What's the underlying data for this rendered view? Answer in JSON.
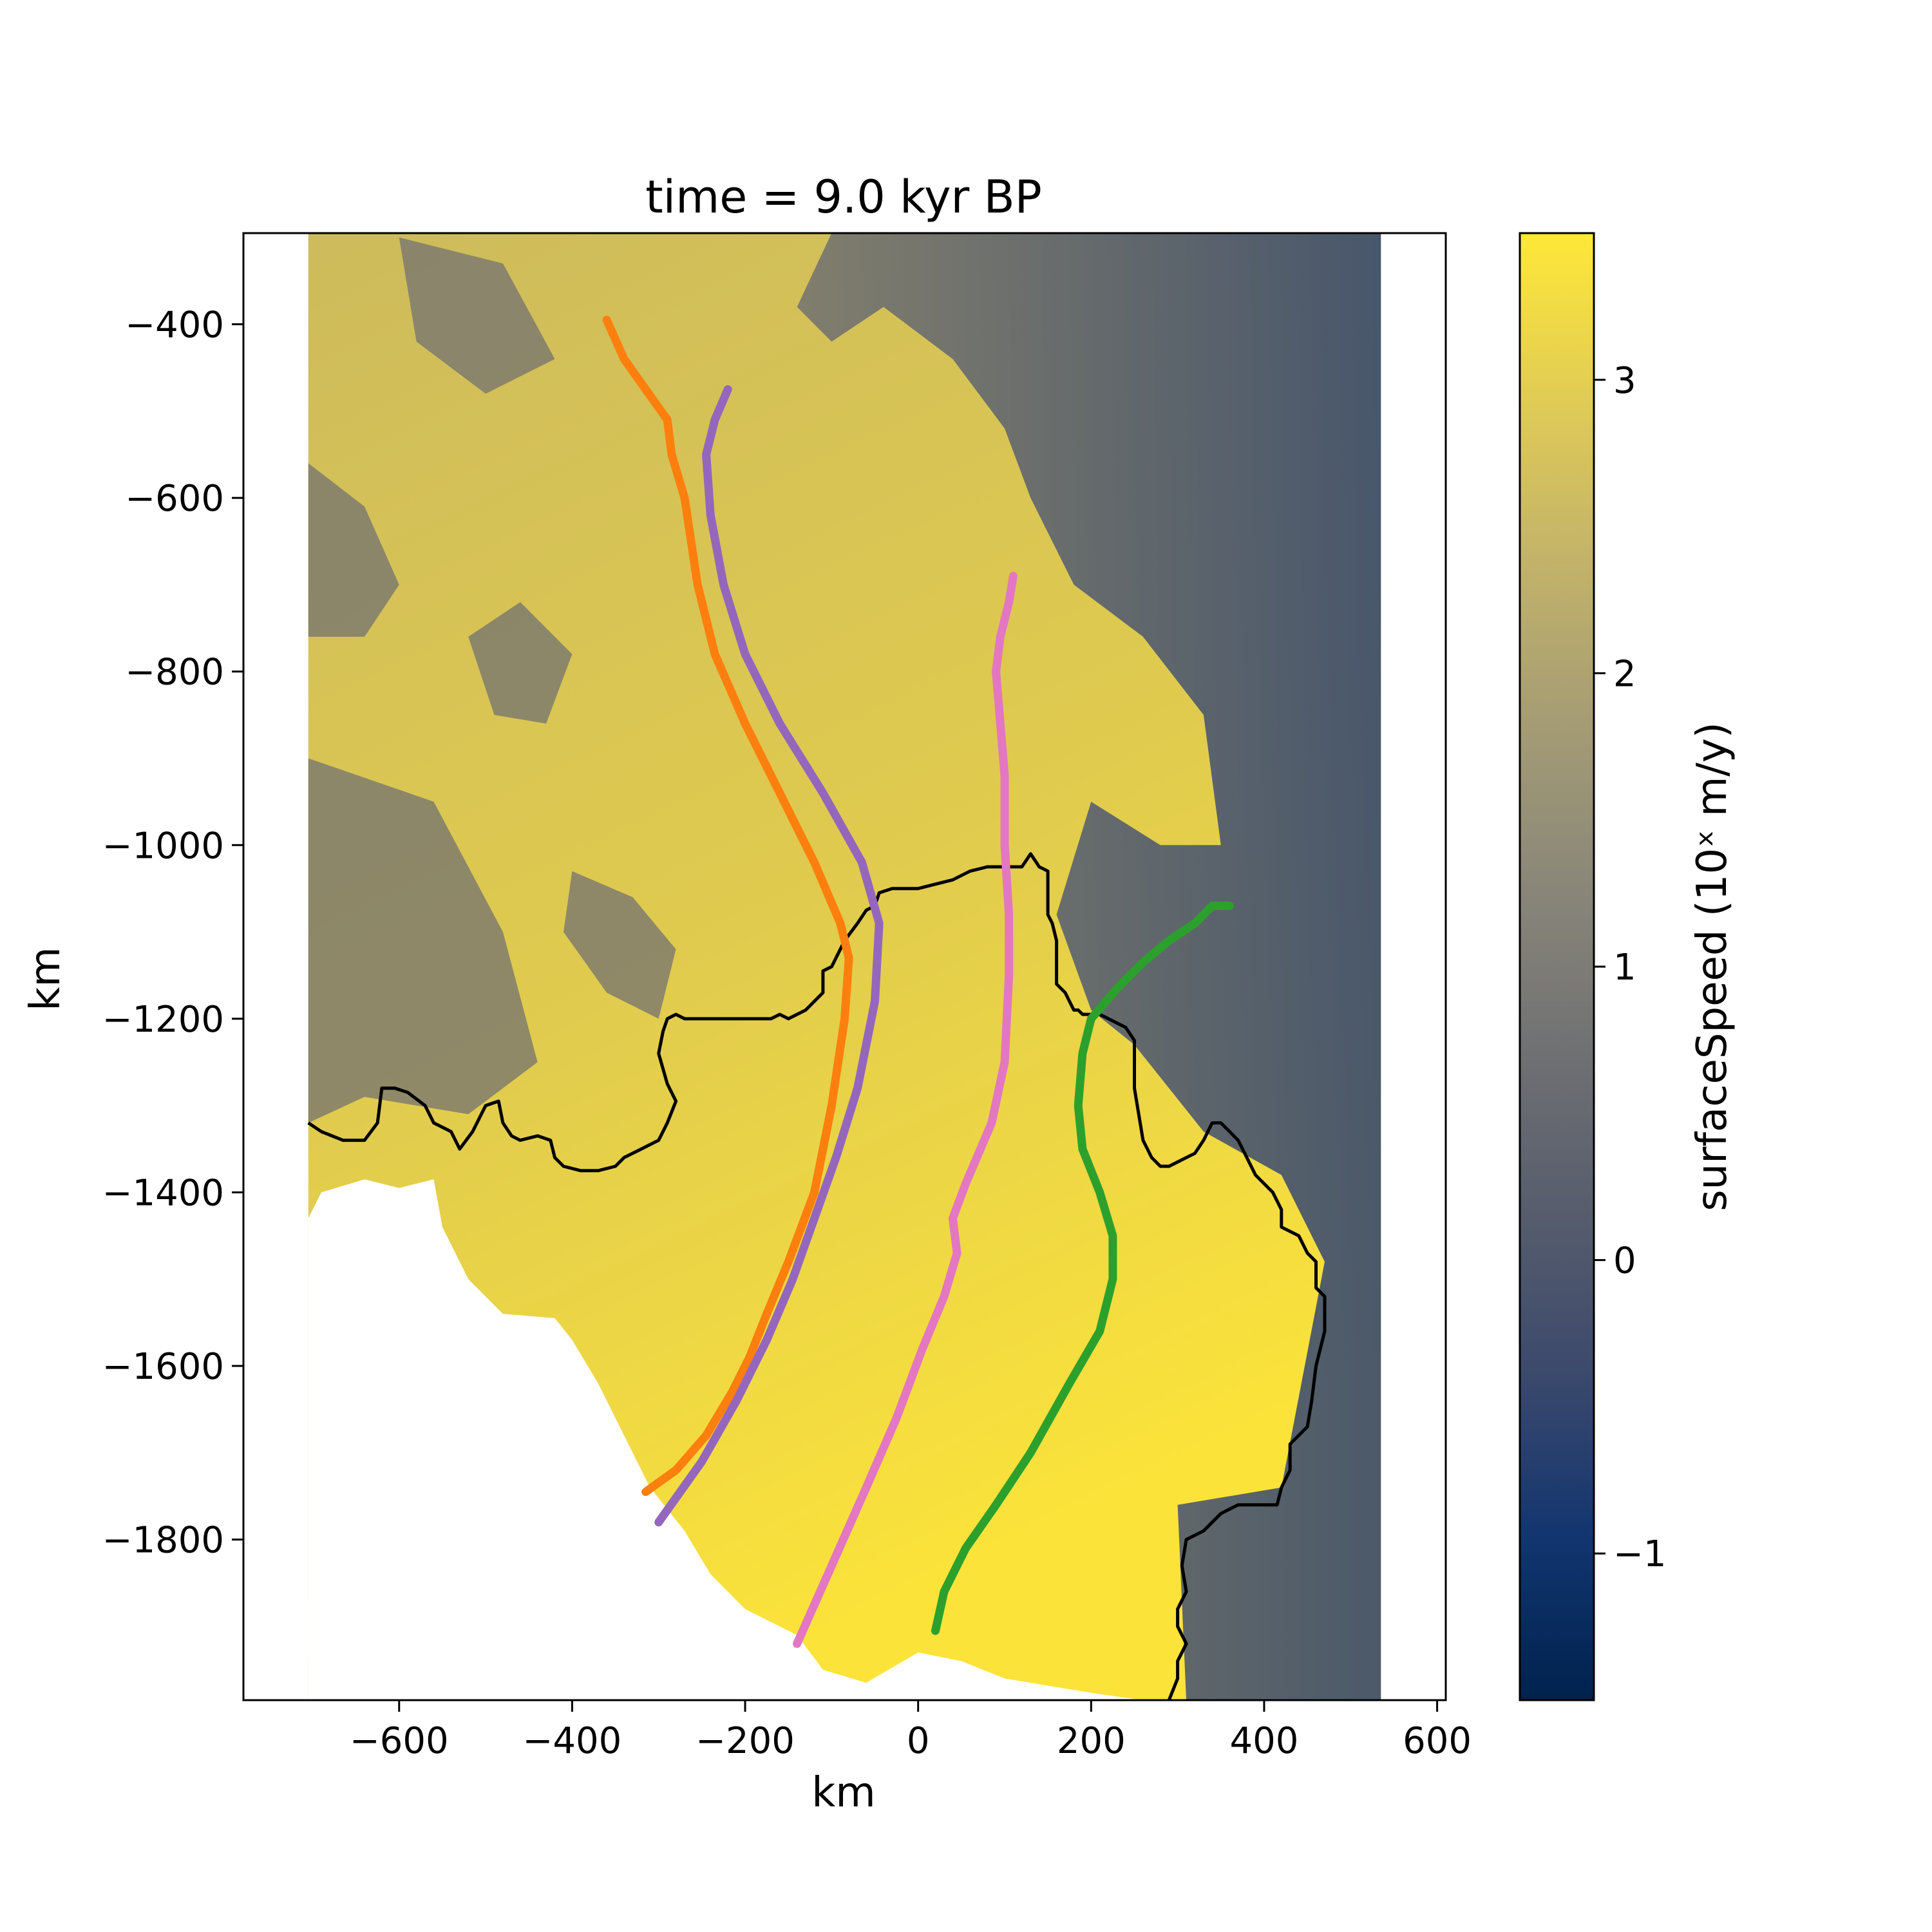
{
  "chart_data": {
    "type": "heatmap",
    "title": "time = 9.0 kyr BP",
    "xlabel": "km",
    "ylabel": "km",
    "xlim": [
      -780,
      610
    ],
    "ylim": [
      -1985,
      -295
    ],
    "xticks": [
      -600,
      -400,
      -200,
      0,
      200,
      400,
      600
    ],
    "yticks": [
      -400,
      -600,
      -800,
      -1000,
      -1200,
      -1400,
      -1600,
      -1800
    ],
    "tick_labels_x": [
      "−600",
      "−400",
      "−200",
      "0",
      "200",
      "400",
      "600"
    ],
    "tick_labels_y": [
      "−400",
      "−600",
      "−800",
      "−1000",
      "−1200",
      "−1400",
      "−1600",
      "−1800"
    ],
    "grid": false,
    "colorbar": {
      "label": "surfaceSpeed (10ˣ m/y)",
      "colormap": "cividis",
      "range": [
        -1.5,
        3.5
      ],
      "ticks": [
        -1,
        0,
        1,
        2,
        3
      ],
      "tick_labels": [
        "−1",
        "0",
        "1",
        "2",
        "3"
      ],
      "colors": [
        "#00224e",
        "#123570",
        "#3b496c",
        "#575d6d",
        "#707173",
        "#8a8779",
        "#a59c74",
        "#c3b369",
        "#e1cc55",
        "#fee838"
      ]
    },
    "domain_extent": {
      "x": [
        -705,
        535
      ],
      "y": [
        -1985,
        -295
      ]
    },
    "flowlines": [
      {
        "color": "#ff7f0e",
        "x": [
          -360,
          -340,
          -315,
          -290,
          -285,
          -270,
          -255,
          -235,
          -200,
          -160,
          -120,
          -90,
          -80,
          -85,
          -100,
          -120,
          -150,
          -175,
          -195,
          -215,
          -245,
          -280,
          -315
        ],
        "y": [
          -395,
          -440,
          -475,
          -510,
          -550,
          -600,
          -700,
          -780,
          -860,
          -940,
          -1020,
          -1090,
          -1130,
          -1200,
          -1300,
          -1400,
          -1480,
          -1540,
          -1590,
          -1630,
          -1680,
          -1720,
          -1745
        ]
      },
      {
        "color": "#9467bd",
        "x": [
          -220,
          -235,
          -245,
          -240,
          -225,
          -200,
          -160,
          -110,
          -65,
          -45,
          -50,
          -70,
          -95,
          -120,
          -145,
          -175,
          -210,
          -250,
          -300
        ],
        "y": [
          -475,
          -510,
          -550,
          -620,
          -700,
          -780,
          -860,
          -940,
          -1020,
          -1090,
          -1180,
          -1280,
          -1360,
          -1430,
          -1500,
          -1570,
          -1640,
          -1710,
          -1780
        ]
      },
      {
        "color": "#e377c2",
        "x": [
          110,
          105,
          95,
          90,
          95,
          100,
          100,
          105,
          105,
          100,
          85,
          55,
          40,
          45,
          30,
          5,
          -25,
          -60,
          -100,
          -140
        ],
        "y": [
          -690,
          -720,
          -760,
          -800,
          -860,
          -920,
          -1000,
          -1080,
          -1150,
          -1250,
          -1320,
          -1390,
          -1430,
          -1470,
          -1520,
          -1580,
          -1660,
          -1740,
          -1830,
          -1920
        ]
      },
      {
        "color": "#2ca02c",
        "x": [
          360,
          340,
          330,
          320,
          290,
          260,
          230,
          200,
          190,
          185,
          190,
          210,
          225,
          225,
          210,
          175,
          130,
          90,
          55,
          30,
          20
        ],
        "y": [
          -1070,
          -1070,
          -1080,
          -1090,
          -1110,
          -1135,
          -1165,
          -1200,
          -1240,
          -1300,
          -1350,
          -1400,
          -1450,
          -1500,
          -1560,
          -1620,
          -1700,
          -1760,
          -1810,
          -1860,
          -1905
        ]
      }
    ],
    "grounding_line": {
      "color": "#000000",
      "x": [
        -705,
        -690,
        -665,
        -640,
        -625,
        -620,
        -605,
        -590,
        -570,
        -560,
        -540,
        -530,
        -515,
        -505,
        -500,
        -485,
        -480,
        -470,
        -460,
        -440,
        -425,
        -420,
        -410,
        -390,
        -370,
        -350,
        -340,
        -320,
        -300,
        -290,
        -280,
        -290,
        -300,
        -295,
        -290,
        -280,
        -270,
        -260,
        -250,
        -230,
        -210,
        -190,
        -170,
        -160,
        -150,
        -130,
        -120,
        -110,
        -110,
        -100,
        -85,
        -70,
        -60,
        -50,
        -45,
        -30,
        -20,
        0,
        20,
        40,
        60,
        80,
        100,
        120,
        130,
        140,
        150,
        150,
        155,
        160,
        160,
        170,
        175,
        180,
        185,
        190,
        200,
        210,
        220,
        240,
        250,
        250,
        255,
        260,
        270,
        280,
        290,
        310,
        320,
        330,
        340,
        350,
        370,
        380,
        390,
        410,
        420,
        420,
        440,
        450,
        460,
        460,
        470,
        470,
        460,
        455,
        450,
        440,
        430,
        430,
        420,
        415,
        410,
        400,
        390,
        370,
        350,
        330,
        310,
        305,
        310,
        300,
        300,
        310,
        300,
        300,
        290
      ],
      "y": [
        -1320,
        -1330,
        -1340,
        -1340,
        -1320,
        -1280,
        -1280,
        -1285,
        -1300,
        -1320,
        -1330,
        -1350,
        -1330,
        -1310,
        -1300,
        -1295,
        -1320,
        -1335,
        -1340,
        -1335,
        -1340,
        -1360,
        -1370,
        -1375,
        -1375,
        -1370,
        -1360,
        -1350,
        -1340,
        -1320,
        -1295,
        -1275,
        -1240,
        -1215,
        -1200,
        -1195,
        -1200,
        -1200,
        -1200,
        -1200,
        -1200,
        -1200,
        -1200,
        -1195,
        -1200,
        -1190,
        -1180,
        -1170,
        -1145,
        -1140,
        -1110,
        -1090,
        -1075,
        -1070,
        -1055,
        -1050,
        -1050,
        -1050,
        -1045,
        -1040,
        -1030,
        -1025,
        -1025,
        -1025,
        -1010,
        -1025,
        -1030,
        -1080,
        -1090,
        -1110,
        -1160,
        -1170,
        -1180,
        -1190,
        -1190,
        -1195,
        -1195,
        -1195,
        -1200,
        -1210,
        -1225,
        -1280,
        -1310,
        -1340,
        -1360,
        -1370,
        -1370,
        -1360,
        -1355,
        -1340,
        -1320,
        -1320,
        -1340,
        -1360,
        -1380,
        -1400,
        -1420,
        -1440,
        -1450,
        -1470,
        -1480,
        -1510,
        -1520,
        -1560,
        -1600,
        -1640,
        -1670,
        -1680,
        -1690,
        -1720,
        -1740,
        -1760,
        -1760,
        -1760,
        -1760,
        -1760,
        -1770,
        -1790,
        -1800,
        -1830,
        -1860,
        -1880,
        -1900,
        -1920,
        -1940,
        -1960,
        -1985
      ]
    }
  }
}
